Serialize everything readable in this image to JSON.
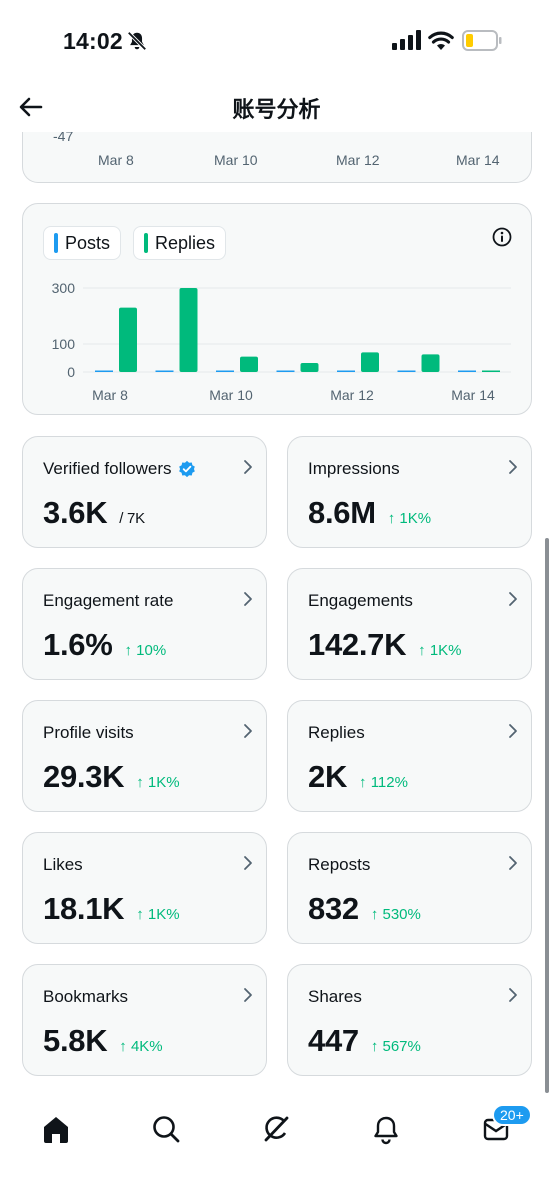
{
  "status_bar": {
    "time": "14:02"
  },
  "header": {
    "title": "账号分析"
  },
  "top_chart": {
    "ytick": "-47",
    "xticks": [
      "Mar 8",
      "Mar 10",
      "Mar 12",
      "Mar 14"
    ]
  },
  "chart_data": {
    "type": "bar",
    "legend": [
      "Posts",
      "Replies"
    ],
    "colors": {
      "Posts": "#1d9bf0",
      "Replies": "#00ba7c"
    },
    "categories": [
      "Mar 8",
      "Mar 9",
      "Mar 10",
      "Mar 11",
      "Mar 12",
      "Mar 13",
      "Mar 14"
    ],
    "series": [
      {
        "name": "Posts",
        "values": [
          2,
          3,
          3,
          5,
          4,
          2,
          1
        ]
      },
      {
        "name": "Replies",
        "values": [
          230,
          300,
          55,
          32,
          70,
          63,
          0
        ]
      }
    ],
    "yticks": [
      "300",
      "100",
      "0"
    ],
    "xticks": [
      "Mar 8",
      "Mar 10",
      "Mar 12",
      "Mar 14"
    ],
    "ylim": [
      0,
      300
    ]
  },
  "stats": [
    {
      "label": "Verified followers",
      "value": "3.6K",
      "sub": "/ 7K",
      "change": ""
    },
    {
      "label": "Impressions",
      "value": "8.6M",
      "sub": "",
      "change": "↑ 1K%"
    },
    {
      "label": "Engagement rate",
      "value": "1.6%",
      "sub": "",
      "change": "↑ 10%"
    },
    {
      "label": "Engagements",
      "value": "142.7K",
      "sub": "",
      "change": "↑ 1K%"
    },
    {
      "label": "Profile visits",
      "value": "29.3K",
      "sub": "",
      "change": "↑ 1K%"
    },
    {
      "label": "Replies",
      "value": "2K",
      "sub": "",
      "change": "↑ 112%"
    },
    {
      "label": "Likes",
      "value": "18.1K",
      "sub": "",
      "change": "↑ 1K%"
    },
    {
      "label": "Reposts",
      "value": "832",
      "sub": "",
      "change": "↑ 530%"
    },
    {
      "label": "Bookmarks",
      "value": "5.8K",
      "sub": "",
      "change": "↑ 4K%"
    },
    {
      "label": "Shares",
      "value": "447",
      "sub": "",
      "change": "↑ 567%"
    }
  ],
  "nav": {
    "messages_badge": "20+"
  },
  "icons": {
    "back": "arrow-left-icon",
    "info": "info-icon",
    "chevron": "chevron-right-icon",
    "verified": "verified-badge-icon",
    "home": "home-icon",
    "search": "search-icon",
    "grok": "grok-icon",
    "notifications": "bell-icon",
    "messages": "mail-icon"
  }
}
